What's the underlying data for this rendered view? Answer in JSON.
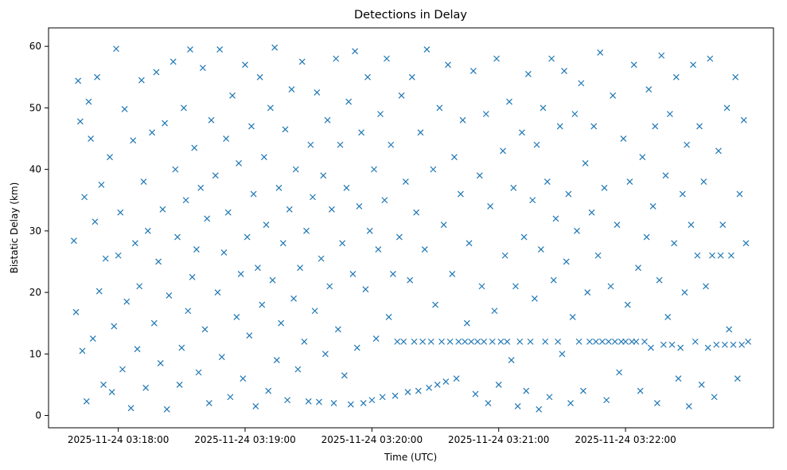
{
  "chart_data": {
    "type": "scatter",
    "title": "Detections in Delay",
    "xlabel": "Time (UTC)",
    "ylabel": "Bistatic Delay (km)",
    "x_range_seconds_rel_03_17_00": [
      39,
      358
    ],
    "xticks": [
      {
        "t": "2025-11-24 03:18:00",
        "label": "2025-11-24 03:18:00"
      },
      {
        "t": "2025-11-24 03:19:00",
        "label": "2025-11-24 03:19:00"
      },
      {
        "t": "2025-11-24 03:20:00",
        "label": "2025-11-24 03:20:00"
      },
      {
        "t": "2025-11-24 03:21:00",
        "label": "2025-11-24 03:21:00"
      },
      {
        "t": "2025-11-24 03:22:00",
        "label": "2025-11-24 03:22:00"
      }
    ],
    "ylim": [
      -2,
      63
    ],
    "yticks": [
      0,
      10,
      20,
      30,
      40,
      50,
      60
    ],
    "marker": "x",
    "color": "#1f77b4",
    "grid": false,
    "series": [
      {
        "name": "",
        "points_seconds_rel_03_17_00_km": [
          [
            39,
            28.4
          ],
          [
            40,
            16.8
          ],
          [
            41,
            54.4
          ],
          [
            42,
            47.8
          ],
          [
            43,
            10.5
          ],
          [
            44,
            35.5
          ],
          [
            45,
            2.3
          ],
          [
            46,
            51
          ],
          [
            47,
            45
          ],
          [
            48,
            12.5
          ],
          [
            49,
            31.5
          ],
          [
            50,
            55
          ],
          [
            51,
            20.2
          ],
          [
            52,
            37.5
          ],
          [
            53,
            5
          ],
          [
            54,
            25.5
          ],
          [
            56,
            42
          ],
          [
            57,
            3.8
          ],
          [
            58,
            14.5
          ],
          [
            59,
            59.6
          ],
          [
            60,
            26
          ],
          [
            61,
            33
          ],
          [
            62,
            7.5
          ],
          [
            63,
            49.8
          ],
          [
            64,
            18.5
          ],
          [
            66,
            1.2
          ],
          [
            67,
            44.7
          ],
          [
            68,
            28
          ],
          [
            69,
            10.8
          ],
          [
            70,
            21
          ],
          [
            71,
            54.5
          ],
          [
            72,
            38
          ],
          [
            73,
            4.5
          ],
          [
            74,
            30
          ],
          [
            76,
            46
          ],
          [
            77,
            15
          ],
          [
            78,
            55.8
          ],
          [
            79,
            25
          ],
          [
            80,
            8.5
          ],
          [
            81,
            33.5
          ],
          [
            82,
            47.5
          ],
          [
            83,
            1
          ],
          [
            84,
            19.5
          ],
          [
            86,
            57.5
          ],
          [
            87,
            40
          ],
          [
            88,
            29
          ],
          [
            89,
            5
          ],
          [
            90,
            11
          ],
          [
            91,
            50
          ],
          [
            92,
            35
          ],
          [
            93,
            17
          ],
          [
            94,
            59.5
          ],
          [
            95,
            22.5
          ],
          [
            96,
            43.5
          ],
          [
            97,
            27
          ],
          [
            98,
            7
          ],
          [
            99,
            37
          ],
          [
            100,
            56.5
          ],
          [
            101,
            14
          ],
          [
            102,
            32
          ],
          [
            103,
            2
          ],
          [
            104,
            48
          ],
          [
            106,
            39
          ],
          [
            107,
            20
          ],
          [
            108,
            59.5
          ],
          [
            109,
            9.5
          ],
          [
            110,
            26.5
          ],
          [
            111,
            45
          ],
          [
            112,
            33
          ],
          [
            113,
            3
          ],
          [
            114,
            52
          ],
          [
            116,
            16
          ],
          [
            117,
            41
          ],
          [
            118,
            23
          ],
          [
            119,
            6
          ],
          [
            120,
            57
          ],
          [
            121,
            29
          ],
          [
            122,
            13
          ],
          [
            123,
            47
          ],
          [
            124,
            36
          ],
          [
            125,
            1.5
          ],
          [
            126,
            24
          ],
          [
            127,
            55
          ],
          [
            128,
            18
          ],
          [
            129,
            42
          ],
          [
            130,
            31
          ],
          [
            131,
            4
          ],
          [
            132,
            50
          ],
          [
            133,
            22
          ],
          [
            134,
            59.8
          ],
          [
            135,
            9
          ],
          [
            136,
            37
          ],
          [
            137,
            15
          ],
          [
            138,
            28
          ],
          [
            139,
            46.5
          ],
          [
            140,
            2.5
          ],
          [
            141,
            33.5
          ],
          [
            142,
            53
          ],
          [
            143,
            19
          ],
          [
            144,
            40
          ],
          [
            145,
            7.5
          ],
          [
            146,
            24
          ],
          [
            147,
            57.5
          ],
          [
            148,
            12
          ],
          [
            149,
            30
          ],
          [
            150,
            2.3
          ],
          [
            151,
            44
          ],
          [
            152,
            35.5
          ],
          [
            153,
            17
          ],
          [
            154,
            52.5
          ],
          [
            155,
            2.2
          ],
          [
            156,
            25.5
          ],
          [
            157,
            39
          ],
          [
            158,
            10
          ],
          [
            159,
            48
          ],
          [
            160,
            21
          ],
          [
            161,
            33.5
          ],
          [
            162,
            2
          ],
          [
            163,
            58
          ],
          [
            164,
            14
          ],
          [
            165,
            44
          ],
          [
            166,
            28
          ],
          [
            167,
            6.5
          ],
          [
            168,
            37
          ],
          [
            169,
            51
          ],
          [
            170,
            1.8
          ],
          [
            171,
            23
          ],
          [
            172,
            59.2
          ],
          [
            173,
            11
          ],
          [
            174,
            34
          ],
          [
            175,
            46
          ],
          [
            176,
            2
          ],
          [
            177,
            20.5
          ],
          [
            178,
            55
          ],
          [
            179,
            30
          ],
          [
            180,
            2.5
          ],
          [
            181,
            40
          ],
          [
            182,
            12.5
          ],
          [
            183,
            27
          ],
          [
            184,
            49
          ],
          [
            185,
            3
          ],
          [
            186,
            35
          ],
          [
            187,
            58
          ],
          [
            188,
            16
          ],
          [
            189,
            44
          ],
          [
            190,
            23
          ],
          [
            191,
            3.2
          ],
          [
            192,
            12
          ],
          [
            193,
            29
          ],
          [
            194,
            52
          ],
          [
            195,
            12
          ],
          [
            196,
            38
          ],
          [
            197,
            3.8
          ],
          [
            198,
            22
          ],
          [
            199,
            55
          ],
          [
            200,
            12
          ],
          [
            201,
            33
          ],
          [
            202,
            4
          ],
          [
            203,
            46
          ],
          [
            204,
            12
          ],
          [
            205,
            27
          ],
          [
            206,
            59.5
          ],
          [
            207,
            4.5
          ],
          [
            208,
            12
          ],
          [
            209,
            40
          ],
          [
            210,
            18
          ],
          [
            211,
            5
          ],
          [
            212,
            50
          ],
          [
            213,
            12
          ],
          [
            214,
            31
          ],
          [
            215,
            5.5
          ],
          [
            216,
            57
          ],
          [
            217,
            12
          ],
          [
            218,
            23
          ],
          [
            219,
            42
          ],
          [
            220,
            6
          ],
          [
            221,
            12
          ],
          [
            222,
            36
          ],
          [
            223,
            48
          ],
          [
            224,
            12
          ],
          [
            225,
            15
          ],
          [
            226,
            28
          ],
          [
            227,
            12
          ],
          [
            228,
            56
          ],
          [
            229,
            3.5
          ],
          [
            230,
            12
          ],
          [
            231,
            39
          ],
          [
            232,
            21
          ],
          [
            233,
            12
          ],
          [
            234,
            49
          ],
          [
            235,
            2
          ],
          [
            236,
            34
          ],
          [
            237,
            12
          ],
          [
            238,
            17
          ],
          [
            239,
            58
          ],
          [
            240,
            5
          ],
          [
            241,
            12
          ],
          [
            242,
            43
          ],
          [
            243,
            26
          ],
          [
            244,
            12
          ],
          [
            245,
            51
          ],
          [
            246,
            9
          ],
          [
            247,
            37
          ],
          [
            248,
            21
          ],
          [
            249,
            1.5
          ],
          [
            250,
            12
          ],
          [
            251,
            46
          ],
          [
            252,
            29
          ],
          [
            253,
            4
          ],
          [
            254,
            55.5
          ],
          [
            255,
            12
          ],
          [
            256,
            35
          ],
          [
            257,
            19
          ],
          [
            258,
            44
          ],
          [
            259,
            1
          ],
          [
            260,
            27
          ],
          [
            261,
            50
          ],
          [
            262,
            12
          ],
          [
            263,
            38
          ],
          [
            264,
            3
          ],
          [
            265,
            58
          ],
          [
            266,
            22
          ],
          [
            267,
            32
          ],
          [
            268,
            12
          ],
          [
            269,
            47
          ],
          [
            270,
            10
          ],
          [
            271,
            56
          ],
          [
            272,
            25
          ],
          [
            273,
            36
          ],
          [
            274,
            2
          ],
          [
            275,
            16
          ],
          [
            276,
            49
          ],
          [
            277,
            30
          ],
          [
            278,
            12
          ],
          [
            279,
            54
          ],
          [
            280,
            4
          ],
          [
            281,
            41
          ],
          [
            282,
            20
          ],
          [
            283,
            12
          ],
          [
            284,
            33
          ],
          [
            285,
            47
          ],
          [
            286,
            12
          ],
          [
            287,
            26
          ],
          [
            288,
            59
          ],
          [
            289,
            12
          ],
          [
            290,
            37
          ],
          [
            291,
            2.5
          ],
          [
            292,
            12
          ],
          [
            293,
            21
          ],
          [
            294,
            52
          ],
          [
            295,
            12
          ],
          [
            296,
            31
          ],
          [
            297,
            7
          ],
          [
            298,
            12
          ],
          [
            299,
            45
          ],
          [
            300,
            12
          ],
          [
            301,
            18
          ],
          [
            302,
            38
          ],
          [
            303,
            12
          ],
          [
            304,
            57
          ],
          [
            305,
            12
          ],
          [
            306,
            24
          ],
          [
            307,
            4
          ],
          [
            308,
            42
          ],
          [
            309,
            12
          ],
          [
            310,
            29
          ],
          [
            311,
            53
          ],
          [
            312,
            11
          ],
          [
            313,
            34
          ],
          [
            314,
            47
          ],
          [
            315,
            2
          ],
          [
            316,
            22
          ],
          [
            317,
            58.5
          ],
          [
            318,
            11.5
          ],
          [
            319,
            39
          ],
          [
            320,
            16
          ],
          [
            321,
            49
          ],
          [
            322,
            11.5
          ],
          [
            323,
            28
          ],
          [
            324,
            55
          ],
          [
            325,
            6
          ],
          [
            326,
            11
          ],
          [
            327,
            36
          ],
          [
            328,
            20
          ],
          [
            329,
            44
          ],
          [
            330,
            1.5
          ],
          [
            331,
            31
          ],
          [
            332,
            57
          ],
          [
            333,
            12
          ],
          [
            334,
            26
          ],
          [
            335,
            47
          ],
          [
            336,
            5
          ],
          [
            337,
            38
          ],
          [
            338,
            21
          ],
          [
            339,
            11
          ],
          [
            340,
            58
          ],
          [
            341,
            26
          ],
          [
            342,
            3
          ],
          [
            343,
            11.5
          ],
          [
            344,
            43
          ],
          [
            345,
            26
          ],
          [
            346,
            31
          ],
          [
            347,
            11.5
          ],
          [
            348,
            50
          ],
          [
            349,
            14
          ],
          [
            350,
            26
          ],
          [
            351,
            11.5
          ],
          [
            352,
            55
          ],
          [
            353,
            6
          ],
          [
            354,
            36
          ],
          [
            355,
            11.5
          ],
          [
            356,
            48
          ],
          [
            357,
            28
          ],
          [
            358,
            12
          ]
        ]
      }
    ]
  }
}
